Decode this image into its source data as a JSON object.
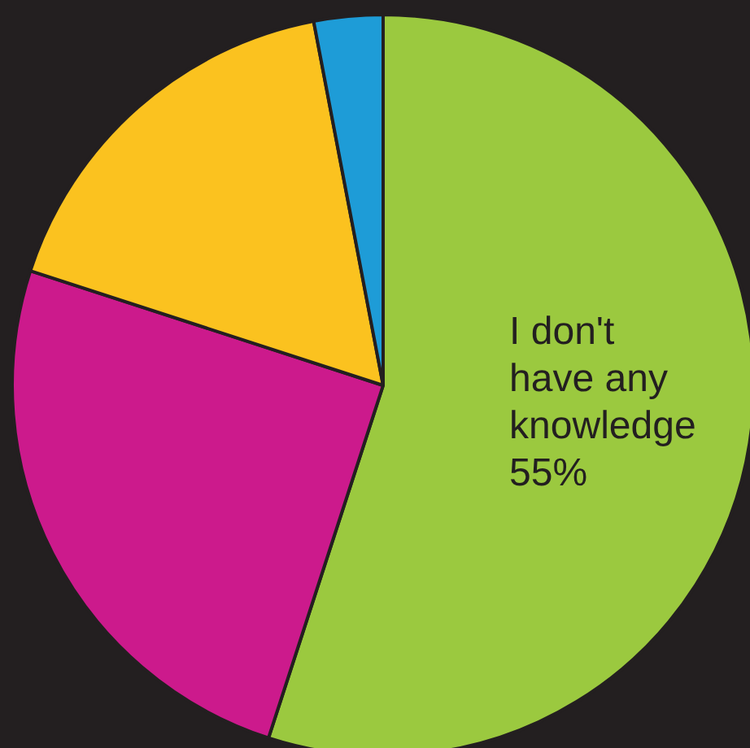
{
  "chart_data": {
    "type": "pie",
    "categories": [
      "I don't have any knowledge",
      null,
      null,
      null
    ],
    "values": [
      55,
      25,
      17,
      3
    ],
    "colors": [
      "#9bc93f",
      "#cc1a8c",
      "#fbc21f",
      "#1e9cd7"
    ],
    "value_labels": [
      "55%",
      null,
      null,
      null
    ],
    "legend": false
  }
}
